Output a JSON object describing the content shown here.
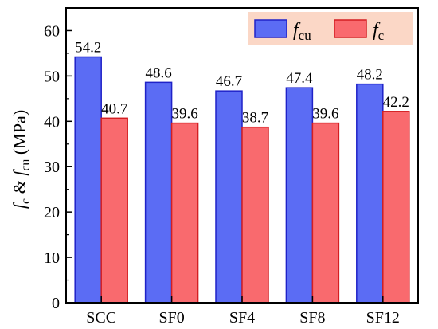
{
  "chart_data": {
    "type": "bar",
    "categories": [
      "SCC",
      "SF0",
      "SF4",
      "SF8",
      "SF12"
    ],
    "series": [
      {
        "name": "f_cu",
        "values": [
          54.2,
          48.6,
          46.7,
          47.4,
          48.2
        ],
        "color": "#5b6cf4",
        "stroke": "#1f22c8"
      },
      {
        "name": "f_c",
        "values": [
          40.7,
          39.6,
          38.7,
          39.6,
          42.2
        ],
        "color": "#f96a6e",
        "stroke": "#d41e22"
      }
    ],
    "value_labels": [
      [
        "54.2",
        "48.6",
        "46.7",
        "47.4",
        "48.2"
      ],
      [
        "40.7",
        "39.6",
        "38.7",
        "39.6",
        "42.2"
      ]
    ],
    "ylabel": "f_c & f_cu (MPa)",
    "ylim": [
      0,
      65
    ],
    "yticks": [
      "0",
      "10",
      "20",
      "30",
      "40",
      "50",
      "60"
    ],
    "legend": {
      "position": "top-right",
      "background": "#fbd7c6",
      "entries": [
        {
          "symbol": "f",
          "sub": "cu"
        },
        {
          "symbol": "f",
          "sub": "c"
        }
      ]
    },
    "grid": false
  }
}
